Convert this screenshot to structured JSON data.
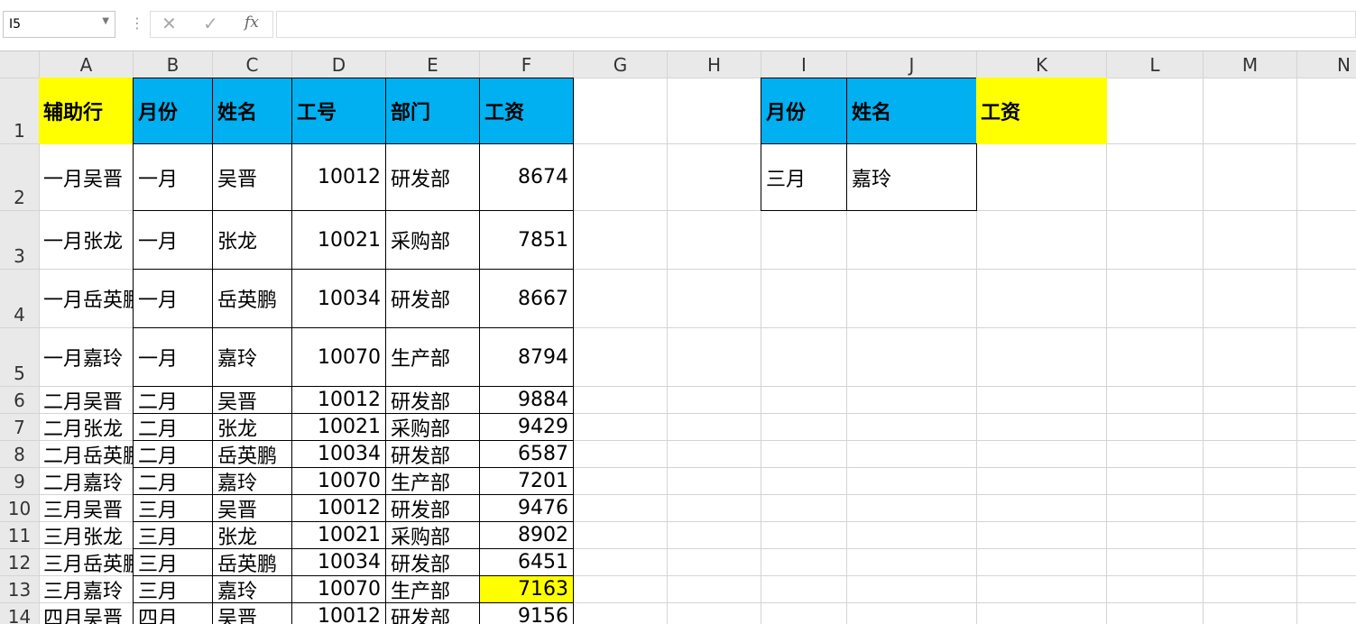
{
  "name_box": "I5",
  "formula_icon": "fx",
  "columns": [
    "A",
    "B",
    "C",
    "D",
    "E",
    "F",
    "G",
    "H",
    "I",
    "J",
    "K",
    "L",
    "M",
    "N"
  ],
  "rows": [
    1,
    2,
    3,
    4,
    5,
    6,
    7,
    8,
    9,
    10,
    11,
    12,
    13,
    14
  ],
  "table": {
    "header": [
      "辅助行",
      "月份",
      "姓名",
      "工号",
      "部门",
      "工资"
    ],
    "rows": [
      [
        "一月吴晋",
        "一月",
        "吴晋",
        10012,
        "研发部",
        8674
      ],
      [
        "一月张龙",
        "一月",
        "张龙",
        10021,
        "采购部",
        7851
      ],
      [
        "一月岳英鹏",
        "一月",
        "岳英鹏",
        10034,
        "研发部",
        8667
      ],
      [
        "一月嘉玲",
        "一月",
        "嘉玲",
        10070,
        "生产部",
        8794
      ],
      [
        "二月吴晋",
        "二月",
        "吴晋",
        10012,
        "研发部",
        9884
      ],
      [
        "二月张龙",
        "二月",
        "张龙",
        10021,
        "采购部",
        9429
      ],
      [
        "二月岳英鹏",
        "二月",
        "岳英鹏",
        10034,
        "研发部",
        6587
      ],
      [
        "二月嘉玲",
        "二月",
        "嘉玲",
        10070,
        "生产部",
        7201
      ],
      [
        "三月吴晋",
        "三月",
        "吴晋",
        10012,
        "研发部",
        9476
      ],
      [
        "三月张龙",
        "三月",
        "张龙",
        10021,
        "采购部",
        8902
      ],
      [
        "三月岳英鹏",
        "三月",
        "岳英鹏",
        10034,
        "研发部",
        6451
      ],
      [
        "三月嘉玲",
        "三月",
        "嘉玲",
        10070,
        "生产部",
        7163
      ],
      [
        "四月吴晋",
        "四月",
        "吴晋",
        10012,
        "研发部",
        9156
      ]
    ]
  },
  "lookup": {
    "header": [
      "月份",
      "姓名",
      "工资"
    ],
    "row": [
      "三月",
      "嘉玲"
    ]
  }
}
